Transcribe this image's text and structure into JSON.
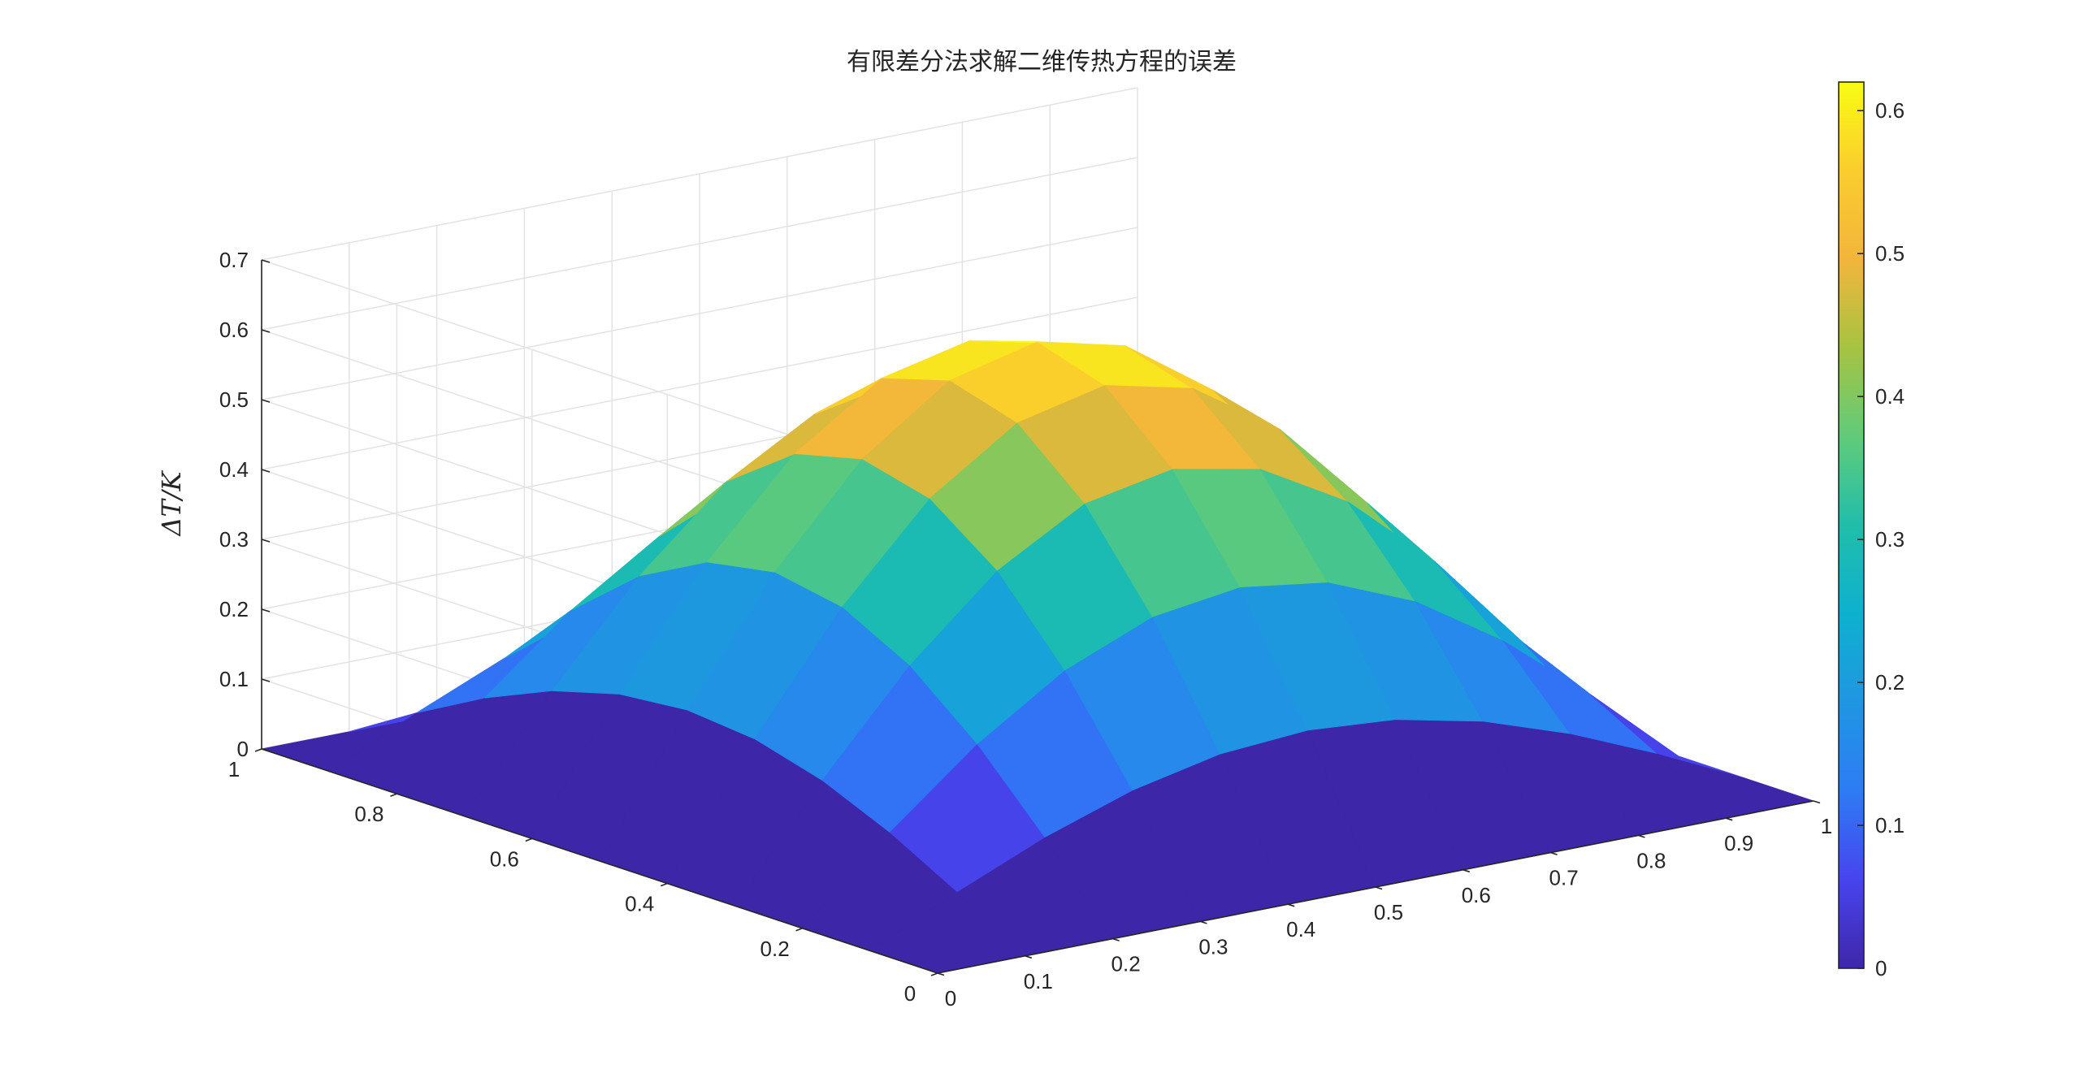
{
  "chart_data": {
    "type": "surface",
    "title": "有限差分法求解二维传热方程的误差",
    "xlabel": "",
    "ylabel": "",
    "zlabel": "ΔT/K",
    "x": [
      0,
      0.1,
      0.2,
      0.3,
      0.4,
      0.5,
      0.6,
      0.7,
      0.8,
      0.9,
      1
    ],
    "y": [
      0,
      0.1,
      0.2,
      0.3,
      0.4,
      0.5,
      0.6,
      0.7,
      0.8,
      0.9,
      1
    ],
    "z_peak": 0.62,
    "z_shape": "sin(pi*x)*sin(pi*y)",
    "xlim": [
      0,
      1
    ],
    "ylim": [
      0,
      1
    ],
    "zlim": [
      0,
      0.7
    ],
    "x_ticks": [
      "0",
      "0.1",
      "0.2",
      "0.3",
      "0.4",
      "0.5",
      "0.6",
      "0.7",
      "0.8",
      "0.9",
      "1"
    ],
    "y_ticks": [
      "0",
      "0.2",
      "0.4",
      "0.6",
      "0.8",
      "1"
    ],
    "z_ticks": [
      "0",
      "0.1",
      "0.2",
      "0.3",
      "0.4",
      "0.5",
      "0.6",
      "0.7"
    ],
    "colorbar": {
      "range": [
        0,
        0.62
      ],
      "ticks": [
        "0",
        "0.1",
        "0.2",
        "0.3",
        "0.4",
        "0.5",
        "0.6"
      ],
      "colormap": "parula"
    },
    "grid": true
  }
}
